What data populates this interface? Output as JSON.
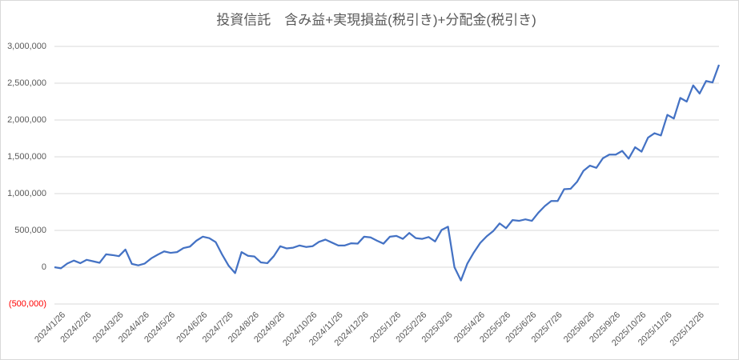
{
  "chart_data": {
    "type": "line",
    "title": "投資信託　含み益+実現損益(税引き)+分配金(税引き)",
    "categories": [
      null,
      "2024/1/26",
      null,
      null,
      null,
      "2024/2/26",
      null,
      null,
      null,
      null,
      "2024/3/26",
      null,
      null,
      null,
      "2024/4/26",
      null,
      null,
      null,
      "2024/5/26",
      null,
      null,
      null,
      null,
      "2024/6/26",
      null,
      null,
      null,
      "2024/7/26",
      null,
      null,
      null,
      "2024/8/26",
      null,
      null,
      null,
      "2024/9/26",
      null,
      null,
      null,
      null,
      "2024/10/26",
      null,
      null,
      null,
      "2024/11/26",
      null,
      null,
      null,
      "2024/12/26",
      null,
      null,
      null,
      null,
      "2025/1/26",
      null,
      null,
      null,
      "2025/2/26",
      null,
      null,
      null,
      "2025/3/26",
      null,
      null,
      null,
      null,
      "2025/4/26",
      null,
      null,
      null,
      "2025/5/26",
      null,
      null,
      null,
      "2025/6/26",
      null,
      null,
      null,
      "2025/7/26",
      null,
      null,
      null,
      null,
      "2025/8/26",
      null,
      null,
      null,
      "2025/9/26",
      null,
      null,
      null,
      "2025/10/26",
      null,
      null,
      null,
      "2025/11/26",
      null,
      null,
      null,
      null,
      "2025/12/26",
      null,
      null,
      null
    ],
    "series": [
      {
        "name": "投資信託",
        "color": "#4472c4",
        "values": [
          0,
          -15000,
          50000,
          90000,
          55000,
          100000,
          80000,
          60000,
          175000,
          165000,
          150000,
          240000,
          45000,
          25000,
          50000,
          120000,
          170000,
          215000,
          195000,
          205000,
          260000,
          280000,
          360000,
          415000,
          395000,
          340000,
          170000,
          20000,
          -80000,
          205000,
          155000,
          145000,
          65000,
          55000,
          150000,
          285000,
          255000,
          265000,
          295000,
          275000,
          285000,
          345000,
          375000,
          335000,
          295000,
          295000,
          325000,
          320000,
          415000,
          405000,
          360000,
          320000,
          415000,
          425000,
          385000,
          465000,
          395000,
          385000,
          410000,
          350000,
          505000,
          550000,
          0,
          -180000,
          50000,
          200000,
          330000,
          420000,
          490000,
          595000,
          530000,
          640000,
          630000,
          650000,
          630000,
          740000,
          830000,
          900000,
          900000,
          1060000,
          1065000,
          1160000,
          1310000,
          1380000,
          1350000,
          1480000,
          1530000,
          1530000,
          1580000,
          1475000,
          1630000,
          1570000,
          1760000,
          1820000,
          1790000,
          2070000,
          2020000,
          2300000,
          2250000,
          2470000,
          2360000,
          2530000,
          2510000,
          2750000
        ]
      }
    ],
    "ylim": [
      -500000,
      3000000
    ],
    "yticks": [
      {
        "value": -500000,
        "label": "(500,000)"
      },
      0,
      {
        "value": 500000,
        "label": "500,000"
      },
      {
        "value": 1000000,
        "label": "1,000,000"
      },
      {
        "value": 1500000,
        "label": "1,500,000"
      },
      {
        "value": 2000000,
        "label": "2,000,000"
      },
      {
        "value": 2500000,
        "label": "2,500,000"
      },
      {
        "value": 3000000,
        "label": "3,000,000"
      }
    ],
    "grid": true
  }
}
